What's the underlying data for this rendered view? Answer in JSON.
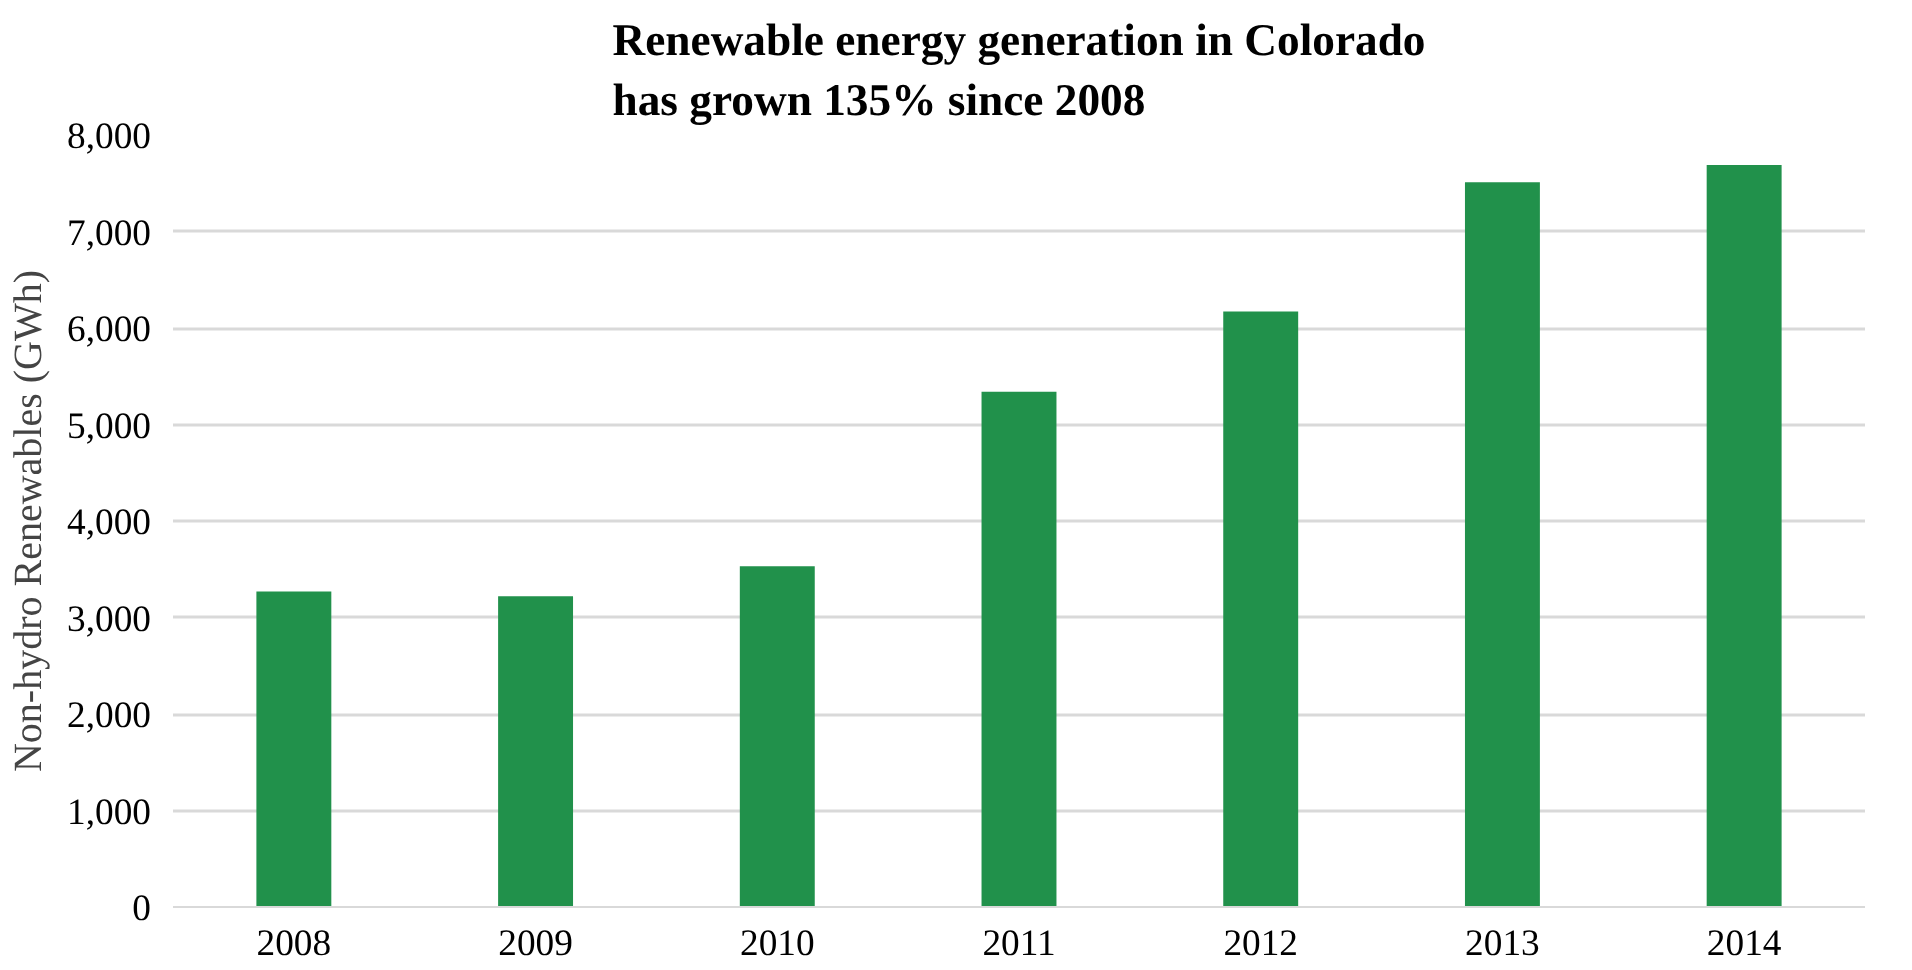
{
  "chart_data": {
    "type": "bar",
    "title": "Renewable energy generation in Colorado\nhas grown 135% since 2008",
    "ylabel": "Non-hydro Renewables (GWh)",
    "categories": [
      "2008",
      "2009",
      "2010",
      "2011",
      "2012",
      "2013",
      "2014"
    ],
    "values": [
      3270,
      3220,
      3530,
      5340,
      6170,
      7510,
      7690
    ],
    "color": "#21914b",
    "ylim": [
      0,
      8000
    ],
    "yticks": [
      {
        "value": 0,
        "label": "0"
      },
      {
        "value": 1000,
        "label": "1,000"
      },
      {
        "value": 2000,
        "label": "2,000"
      },
      {
        "value": 3000,
        "label": "3,000"
      },
      {
        "value": 4000,
        "label": "4,000"
      },
      {
        "value": 5000,
        "label": "5,000"
      },
      {
        "value": 6000,
        "label": "6,000"
      },
      {
        "value": 7000,
        "label": "7,000"
      },
      {
        "value": 8000,
        "label": "8,000"
      }
    ],
    "grid": "y"
  }
}
